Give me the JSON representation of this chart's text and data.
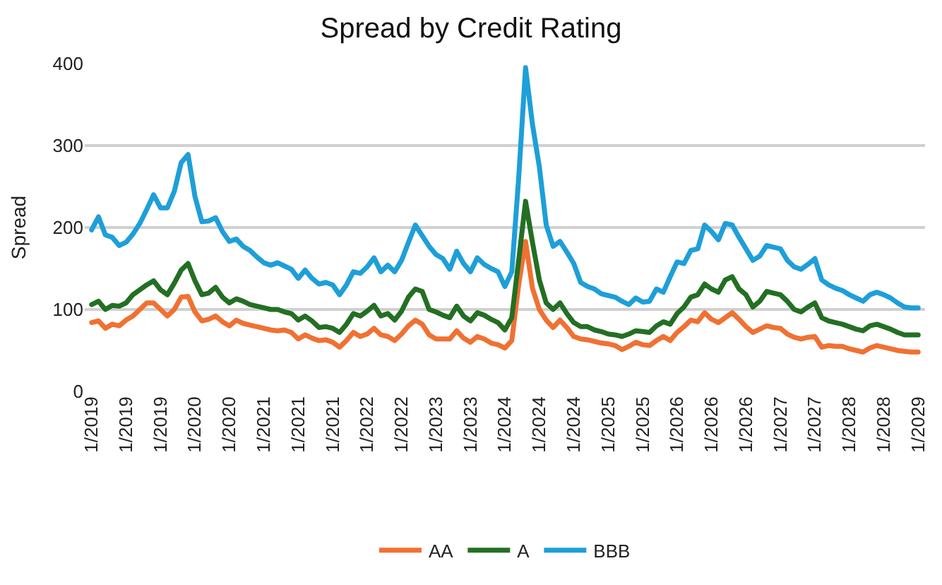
{
  "chart_data": {
    "type": "line",
    "title": "Spread by Credit Rating",
    "ylabel": "Spread",
    "categories": [
      "1/2019",
      null,
      null,
      null,
      null,
      "1/2019",
      null,
      null,
      null,
      null,
      "1/2019",
      null,
      null,
      null,
      null,
      "1/2020",
      null,
      null,
      null,
      null,
      "1/2020",
      null,
      null,
      null,
      null,
      "1/2021",
      null,
      null,
      null,
      null,
      "1/2021",
      null,
      null,
      null,
      null,
      "1/2021",
      null,
      null,
      null,
      null,
      "1/2022",
      null,
      null,
      null,
      null,
      "1/2022",
      null,
      null,
      null,
      null,
      "1/2023",
      null,
      null,
      null,
      null,
      "1/2023",
      null,
      null,
      null,
      null,
      "1/2024",
      null,
      null,
      null,
      null,
      "1/2024",
      null,
      null,
      null,
      null,
      "1/2024",
      null,
      null,
      null,
      null,
      "1/2025",
      null,
      null,
      null,
      null,
      "1/2025",
      null,
      null,
      null,
      null,
      "1/2026",
      null,
      null,
      null,
      null,
      "1/2026",
      null,
      null,
      null,
      null,
      "1/2026",
      null,
      null,
      null,
      null,
      "1/2027",
      null,
      null,
      null,
      null,
      "1/2027",
      null,
      null,
      null,
      null,
      "1/2028",
      null,
      null,
      null,
      null,
      "1/2028",
      null,
      null,
      null,
      null,
      "1/2029"
    ],
    "series": [
      {
        "name": "AA",
        "color": "#f07132",
        "values": [
          84,
          86,
          77,
          82,
          80,
          87,
          92,
          100,
          108,
          108,
          100,
          92,
          100,
          115,
          116,
          97,
          86,
          88,
          92,
          85,
          80,
          87,
          83,
          81,
          79,
          77,
          75,
          74,
          75,
          72,
          64,
          69,
          65,
          62,
          63,
          60,
          54,
          62,
          72,
          67,
          70,
          77,
          69,
          67,
          62,
          70,
          80,
          87,
          82,
          69,
          64,
          64,
          64,
          74,
          65,
          60,
          67,
          64,
          59,
          57,
          53,
          62,
          130,
          183,
          126,
          100,
          87,
          78,
          87,
          78,
          67,
          64,
          63,
          61,
          59,
          58,
          56,
          51,
          55,
          60,
          57,
          56,
          62,
          67,
          62,
          72,
          79,
          87,
          85,
          96,
          88,
          84,
          90,
          96,
          88,
          79,
          72,
          76,
          80,
          78,
          77,
          70,
          66,
          64,
          66,
          67,
          54,
          56,
          55,
          55,
          52,
          50,
          48,
          53,
          56,
          54,
          52,
          50,
          49,
          48,
          48
        ]
      },
      {
        "name": "A",
        "color": "#236f23",
        "values": [
          106,
          110,
          100,
          105,
          104,
          108,
          118,
          124,
          130,
          135,
          124,
          118,
          132,
          148,
          156,
          135,
          118,
          120,
          127,
          115,
          108,
          113,
          110,
          106,
          104,
          102,
          100,
          100,
          97,
          95,
          87,
          92,
          86,
          78,
          79,
          77,
          72,
          82,
          95,
          92,
          98,
          105,
          92,
          95,
          87,
          98,
          115,
          125,
          122,
          100,
          97,
          93,
          90,
          104,
          92,
          86,
          96,
          93,
          88,
          84,
          75,
          90,
          160,
          232,
          182,
          136,
          108,
          100,
          108,
          95,
          84,
          79,
          79,
          75,
          73,
          70,
          69,
          67,
          70,
          74,
          73,
          72,
          80,
          85,
          82,
          95,
          103,
          115,
          118,
          131,
          125,
          121,
          136,
          140,
          125,
          118,
          103,
          110,
          122,
          120,
          118,
          110,
          100,
          97,
          103,
          108,
          90,
          86,
          84,
          82,
          79,
          76,
          74,
          80,
          82,
          79,
          76,
          72,
          69,
          69,
          69
        ]
      },
      {
        "name": "BBB",
        "color": "#1e9fd8",
        "values": [
          197,
          213,
          191,
          188,
          178,
          182,
          192,
          205,
          222,
          240,
          224,
          224,
          244,
          279,
          289,
          238,
          207,
          208,
          212,
          195,
          183,
          186,
          177,
          172,
          164,
          157,
          154,
          157,
          153,
          149,
          138,
          148,
          138,
          131,
          133,
          130,
          118,
          130,
          146,
          144,
          152,
          163,
          146,
          154,
          146,
          160,
          182,
          203,
          190,
          177,
          167,
          162,
          149,
          171,
          156,
          146,
          163,
          155,
          150,
          146,
          128,
          146,
          260,
          395,
          326,
          274,
          203,
          177,
          183,
          170,
          156,
          133,
          128,
          125,
          119,
          117,
          115,
          110,
          106,
          114,
          109,
          110,
          125,
          121,
          140,
          158,
          156,
          172,
          174,
          203,
          195,
          185,
          205,
          203,
          188,
          174,
          160,
          165,
          178,
          176,
          174,
          160,
          152,
          149,
          155,
          162,
          136,
          130,
          126,
          123,
          118,
          114,
          110,
          118,
          121,
          118,
          114,
          108,
          103,
          102,
          102
        ]
      }
    ],
    "ylim": [
      0,
      400
    ],
    "yticks": [
      0,
      100,
      200,
      300,
      400
    ],
    "grid": "y",
    "legend": "bottom",
    "marker": "none",
    "line_style": "solid"
  }
}
